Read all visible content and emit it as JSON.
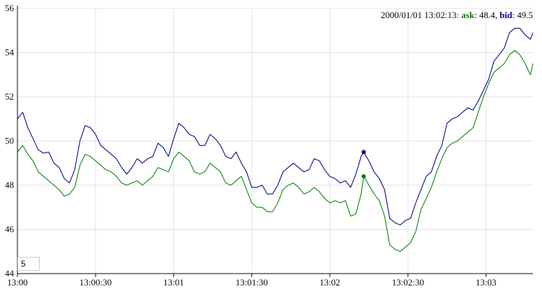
{
  "chart_data": {
    "type": "line",
    "x_unit": "time (HH:MM:SS) on 2000/01/01",
    "x_range": [
      "13:00:00",
      "13:03:18"
    ],
    "ylim": [
      44,
      56
    ],
    "y_ticks": [
      "44",
      "46",
      "48",
      "50",
      "52",
      "54",
      "56"
    ],
    "x_ticks": [
      "13:00",
      "13:00:30",
      "13:01",
      "13:01:30",
      "13:02",
      "13:02:30",
      "13:03"
    ],
    "grid": true,
    "legend": {
      "position": "top-right",
      "timestamp": "2000/01/01 13:02:13",
      "separator": ": ",
      "entries": [
        {
          "name": "ask",
          "value": "48.4"
        },
        {
          "name": "bid",
          "value": "49.5"
        }
      ]
    },
    "highlight_x": "13:02:13",
    "rolling_period": "5",
    "series": [
      {
        "name": "bid",
        "color": "#000080",
        "points": [
          [
            "13:00:00",
            51.0
          ],
          [
            "13:00:02",
            51.3
          ],
          [
            "13:00:04",
            50.6
          ],
          [
            "13:00:06",
            50.1
          ],
          [
            "13:00:08",
            49.6
          ],
          [
            "13:00:10",
            49.45
          ],
          [
            "13:00:12",
            49.5
          ],
          [
            "13:00:14",
            49.0
          ],
          [
            "13:00:16",
            48.8
          ],
          [
            "13:00:18",
            48.3
          ],
          [
            "13:00:20",
            48.1
          ],
          [
            "13:00:22",
            48.7
          ],
          [
            "13:00:24",
            50.0
          ],
          [
            "13:00:26",
            50.7
          ],
          [
            "13:00:28",
            50.6
          ],
          [
            "13:00:30",
            50.3
          ],
          [
            "13:00:32",
            49.8
          ],
          [
            "13:00:34",
            49.6
          ],
          [
            "13:00:36",
            49.4
          ],
          [
            "13:00:38",
            49.2
          ],
          [
            "13:00:40",
            48.8
          ],
          [
            "13:00:42",
            48.5
          ],
          [
            "13:00:44",
            48.8
          ],
          [
            "13:00:46",
            49.2
          ],
          [
            "13:00:48",
            49.0
          ],
          [
            "13:00:50",
            49.2
          ],
          [
            "13:00:52",
            49.3
          ],
          [
            "13:00:54",
            49.9
          ],
          [
            "13:00:56",
            49.7
          ],
          [
            "13:00:58",
            49.3
          ],
          [
            "13:01:00",
            50.1
          ],
          [
            "13:01:02",
            50.8
          ],
          [
            "13:01:04",
            50.6
          ],
          [
            "13:01:06",
            50.3
          ],
          [
            "13:01:08",
            50.2
          ],
          [
            "13:01:10",
            49.8
          ],
          [
            "13:01:12",
            49.8
          ],
          [
            "13:01:14",
            50.3
          ],
          [
            "13:01:16",
            50.1
          ],
          [
            "13:01:18",
            49.8
          ],
          [
            "13:01:20",
            49.3
          ],
          [
            "13:01:22",
            49.2
          ],
          [
            "13:01:24",
            49.5
          ],
          [
            "13:01:26",
            49.0
          ],
          [
            "13:01:28",
            48.6
          ],
          [
            "13:01:30",
            47.9
          ],
          [
            "13:01:32",
            47.9
          ],
          [
            "13:01:34",
            48.0
          ],
          [
            "13:01:36",
            47.6
          ],
          [
            "13:01:38",
            47.6
          ],
          [
            "13:01:40",
            48.0
          ],
          [
            "13:01:42",
            48.6
          ],
          [
            "13:01:44",
            48.8
          ],
          [
            "13:01:46",
            49.0
          ],
          [
            "13:01:48",
            48.8
          ],
          [
            "13:01:50",
            48.6
          ],
          [
            "13:01:52",
            48.7
          ],
          [
            "13:01:54",
            49.2
          ],
          [
            "13:01:56",
            49.1
          ],
          [
            "13:01:58",
            48.7
          ],
          [
            "13:02:00",
            48.4
          ],
          [
            "13:02:02",
            48.3
          ],
          [
            "13:02:04",
            48.1
          ],
          [
            "13:02:06",
            48.2
          ],
          [
            "13:02:08",
            47.9
          ],
          [
            "13:02:10",
            48.5
          ],
          [
            "13:02:12",
            49.3
          ],
          [
            "13:02:13",
            49.5
          ],
          [
            "13:02:15",
            49.1
          ],
          [
            "13:02:17",
            48.6
          ],
          [
            "13:02:19",
            48.3
          ],
          [
            "13:02:21",
            47.8
          ],
          [
            "13:02:23",
            46.5
          ],
          [
            "13:02:25",
            46.3
          ],
          [
            "13:02:27",
            46.2
          ],
          [
            "13:02:29",
            46.4
          ],
          [
            "13:02:31",
            46.5
          ],
          [
            "13:02:33",
            47.2
          ],
          [
            "13:02:35",
            47.8
          ],
          [
            "13:02:37",
            48.4
          ],
          [
            "13:02:39",
            48.6
          ],
          [
            "13:02:41",
            49.3
          ],
          [
            "13:02:43",
            49.8
          ],
          [
            "13:02:45",
            50.8
          ],
          [
            "13:02:47",
            51.0
          ],
          [
            "13:02:49",
            51.1
          ],
          [
            "13:02:51",
            51.3
          ],
          [
            "13:02:53",
            51.5
          ],
          [
            "13:02:55",
            51.4
          ],
          [
            "13:02:57",
            51.8
          ],
          [
            "13:02:59",
            52.3
          ],
          [
            "13:03:01",
            52.8
          ],
          [
            "13:03:03",
            53.6
          ],
          [
            "13:03:05",
            53.9
          ],
          [
            "13:03:07",
            54.2
          ],
          [
            "13:03:09",
            54.9
          ],
          [
            "13:03:11",
            55.1
          ],
          [
            "13:03:13",
            55.1
          ],
          [
            "13:03:15",
            54.8
          ],
          [
            "13:03:17",
            54.6
          ],
          [
            "13:03:18",
            54.9
          ]
        ]
      },
      {
        "name": "ask",
        "color": "#008000",
        "points": [
          [
            "13:00:00",
            49.5
          ],
          [
            "13:00:02",
            49.8
          ],
          [
            "13:00:04",
            49.4
          ],
          [
            "13:00:06",
            49.1
          ],
          [
            "13:00:08",
            48.6
          ],
          [
            "13:00:10",
            48.4
          ],
          [
            "13:00:12",
            48.2
          ],
          [
            "13:00:14",
            48.0
          ],
          [
            "13:00:16",
            47.8
          ],
          [
            "13:00:18",
            47.5
          ],
          [
            "13:00:20",
            47.6
          ],
          [
            "13:00:22",
            47.9
          ],
          [
            "13:00:24",
            48.9
          ],
          [
            "13:00:26",
            49.4
          ],
          [
            "13:00:28",
            49.3
          ],
          [
            "13:00:30",
            49.1
          ],
          [
            "13:00:32",
            48.9
          ],
          [
            "13:00:34",
            48.7
          ],
          [
            "13:00:36",
            48.6
          ],
          [
            "13:00:38",
            48.4
          ],
          [
            "13:00:40",
            48.1
          ],
          [
            "13:00:42",
            48.0
          ],
          [
            "13:00:44",
            48.1
          ],
          [
            "13:00:46",
            48.2
          ],
          [
            "13:00:48",
            48.0
          ],
          [
            "13:00:50",
            48.2
          ],
          [
            "13:00:52",
            48.4
          ],
          [
            "13:00:54",
            48.8
          ],
          [
            "13:00:56",
            48.7
          ],
          [
            "13:00:58",
            48.6
          ],
          [
            "13:01:00",
            49.2
          ],
          [
            "13:01:02",
            49.5
          ],
          [
            "13:01:04",
            49.3
          ],
          [
            "13:01:06",
            49.1
          ],
          [
            "13:01:08",
            48.6
          ],
          [
            "13:01:10",
            48.5
          ],
          [
            "13:01:12",
            48.6
          ],
          [
            "13:01:14",
            49.0
          ],
          [
            "13:01:16",
            48.8
          ],
          [
            "13:01:18",
            48.6
          ],
          [
            "13:01:20",
            48.1
          ],
          [
            "13:01:22",
            48.0
          ],
          [
            "13:01:24",
            48.2
          ],
          [
            "13:01:26",
            48.4
          ],
          [
            "13:01:28",
            47.8
          ],
          [
            "13:01:30",
            47.2
          ],
          [
            "13:01:32",
            47.0
          ],
          [
            "13:01:34",
            47.0
          ],
          [
            "13:01:36",
            46.8
          ],
          [
            "13:01:38",
            46.8
          ],
          [
            "13:01:40",
            47.2
          ],
          [
            "13:01:42",
            47.8
          ],
          [
            "13:01:44",
            48.0
          ],
          [
            "13:01:46",
            48.1
          ],
          [
            "13:01:48",
            47.9
          ],
          [
            "13:01:50",
            47.6
          ],
          [
            "13:01:52",
            47.7
          ],
          [
            "13:01:54",
            47.9
          ],
          [
            "13:01:56",
            47.7
          ],
          [
            "13:01:58",
            47.4
          ],
          [
            "13:02:00",
            47.2
          ],
          [
            "13:02:02",
            47.3
          ],
          [
            "13:02:04",
            47.2
          ],
          [
            "13:02:06",
            47.3
          ],
          [
            "13:02:08",
            46.6
          ],
          [
            "13:02:10",
            46.7
          ],
          [
            "13:02:12",
            47.6
          ],
          [
            "13:02:13",
            48.4
          ],
          [
            "13:02:15",
            48.0
          ],
          [
            "13:02:17",
            47.6
          ],
          [
            "13:02:19",
            47.3
          ],
          [
            "13:02:21",
            46.6
          ],
          [
            "13:02:23",
            45.3
          ],
          [
            "13:02:25",
            45.1
          ],
          [
            "13:02:27",
            45.0
          ],
          [
            "13:02:29",
            45.2
          ],
          [
            "13:02:31",
            45.4
          ],
          [
            "13:02:33",
            45.9
          ],
          [
            "13:02:35",
            46.9
          ],
          [
            "13:02:37",
            47.4
          ],
          [
            "13:02:39",
            47.9
          ],
          [
            "13:02:41",
            48.6
          ],
          [
            "13:02:43",
            49.2
          ],
          [
            "13:02:45",
            49.7
          ],
          [
            "13:02:47",
            49.9
          ],
          [
            "13:02:49",
            50.0
          ],
          [
            "13:02:51",
            50.2
          ],
          [
            "13:02:53",
            50.4
          ],
          [
            "13:02:55",
            50.6
          ],
          [
            "13:02:57",
            51.3
          ],
          [
            "13:02:59",
            52.0
          ],
          [
            "13:03:01",
            52.6
          ],
          [
            "13:03:03",
            53.1
          ],
          [
            "13:03:05",
            53.3
          ],
          [
            "13:03:07",
            53.5
          ],
          [
            "13:03:09",
            53.9
          ],
          [
            "13:03:11",
            54.1
          ],
          [
            "13:03:13",
            53.9
          ],
          [
            "13:03:15",
            53.5
          ],
          [
            "13:03:17",
            53.0
          ],
          [
            "13:03:18",
            53.5
          ]
        ]
      }
    ]
  }
}
